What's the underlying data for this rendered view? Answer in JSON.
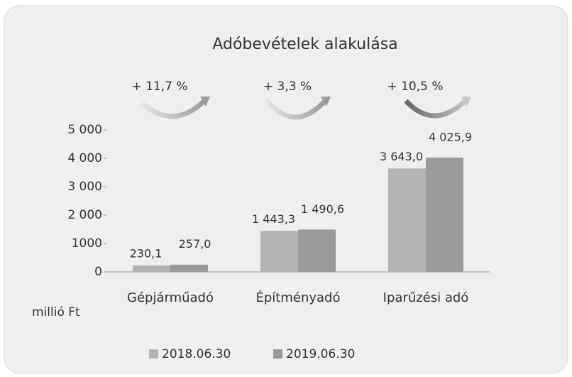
{
  "chart_data": {
    "type": "bar",
    "title": "Adóbevételek alakulása",
    "ylabel": "millió Ft",
    "annotations": [
      "+ 11,7 %",
      "+ 3,3 %",
      "+ 10,5 %"
    ],
    "categories": [
      "Gépjárműadó",
      "Építményadó",
      "Iparűzési adó"
    ],
    "series": [
      {
        "name": "2018.06.30",
        "color": "#b3b3b3",
        "values": [
          230.1,
          1443.3,
          3643.0
        ],
        "value_labels": [
          "230,1",
          "1 443,3",
          "3 643,0"
        ]
      },
      {
        "name": "2019.06.30",
        "color": "#9a9a9a",
        "values": [
          257.0,
          1490.6,
          4025.9
        ],
        "value_labels": [
          "257,0",
          "1 490,6",
          "4 025,9"
        ]
      }
    ],
    "ylim": [
      0,
      5000
    ],
    "yticks": [
      0,
      1000,
      {
        "value": 2000,
        "label": "2 000"
      },
      {
        "value": 3000,
        "label": "3 000"
      },
      {
        "value": 4000,
        "label": "4 000"
      },
      {
        "value": 5000,
        "label": "5 000"
      }
    ],
    "legend": "bottom"
  }
}
